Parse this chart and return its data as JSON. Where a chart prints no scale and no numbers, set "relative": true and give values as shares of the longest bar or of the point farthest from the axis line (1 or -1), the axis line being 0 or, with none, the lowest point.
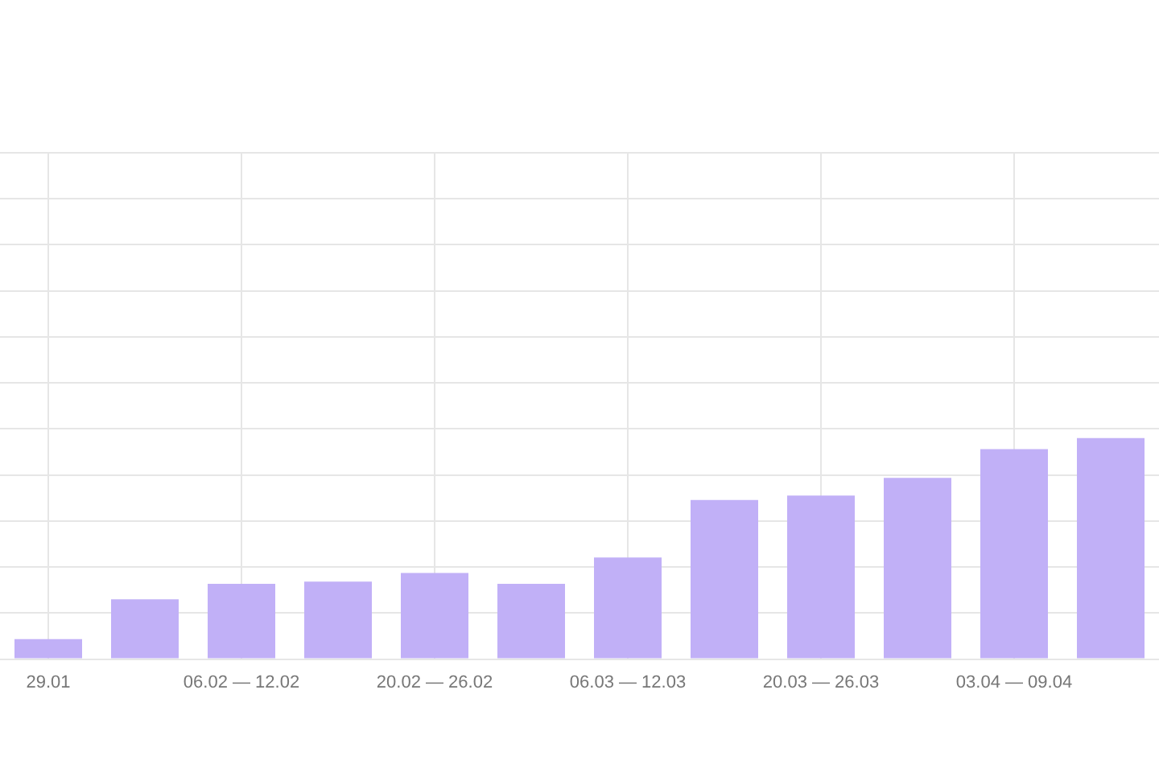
{
  "chart_data": {
    "type": "bar",
    "categories": [
      "29.01",
      null,
      "06.02 — 12.02",
      null,
      "20.02 — 26.02",
      null,
      "06.03 — 12.03",
      null,
      "20.03 — 26.03",
      null,
      "03.04 — 09.04",
      null
    ],
    "values": [
      0.09,
      0.27,
      0.34,
      0.35,
      0.39,
      0.34,
      0.46,
      0.72,
      0.74,
      0.82,
      0.95,
      1
    ],
    "color": "#c1b0f7",
    "relative": true,
    "grid": true
  }
}
